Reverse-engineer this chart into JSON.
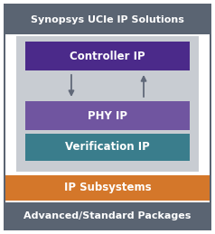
{
  "fig_width": 2.38,
  "fig_height": 2.59,
  "dpi": 100,
  "outer_bg": "#ffffff",
  "outer_frame_color": "#5a6472",
  "top_bar": {
    "label": "Synopsys UCIe IP Solutions",
    "color": "#5a6472",
    "text_color": "#ffffff",
    "fontsize": 8.0,
    "bold": true
  },
  "bottom_bar": {
    "label": "Advanced/Standard Packages",
    "color": "#5a6472",
    "text_color": "#ffffff",
    "fontsize": 8.0,
    "bold": true
  },
  "inner_bg": "#c8ccd2",
  "blocks": [
    {
      "label": "Controller IP",
      "color": "#4b2a8a",
      "text_color": "#ffffff",
      "fontsize": 8.5,
      "bold": true
    },
    {
      "label": "PHY IP",
      "color": "#7055a0",
      "text_color": "#ffffff",
      "fontsize": 8.5,
      "bold": true
    },
    {
      "label": "Verification IP",
      "color": "#3a7d8c",
      "text_color": "#ffffff",
      "fontsize": 8.5,
      "bold": true
    }
  ],
  "subsystem_bar": {
    "label": "IP Subsystems",
    "color": "#d4772a",
    "text_color": "#ffffff",
    "fontsize": 8.5,
    "bold": true
  },
  "arrow_color": "#606878"
}
